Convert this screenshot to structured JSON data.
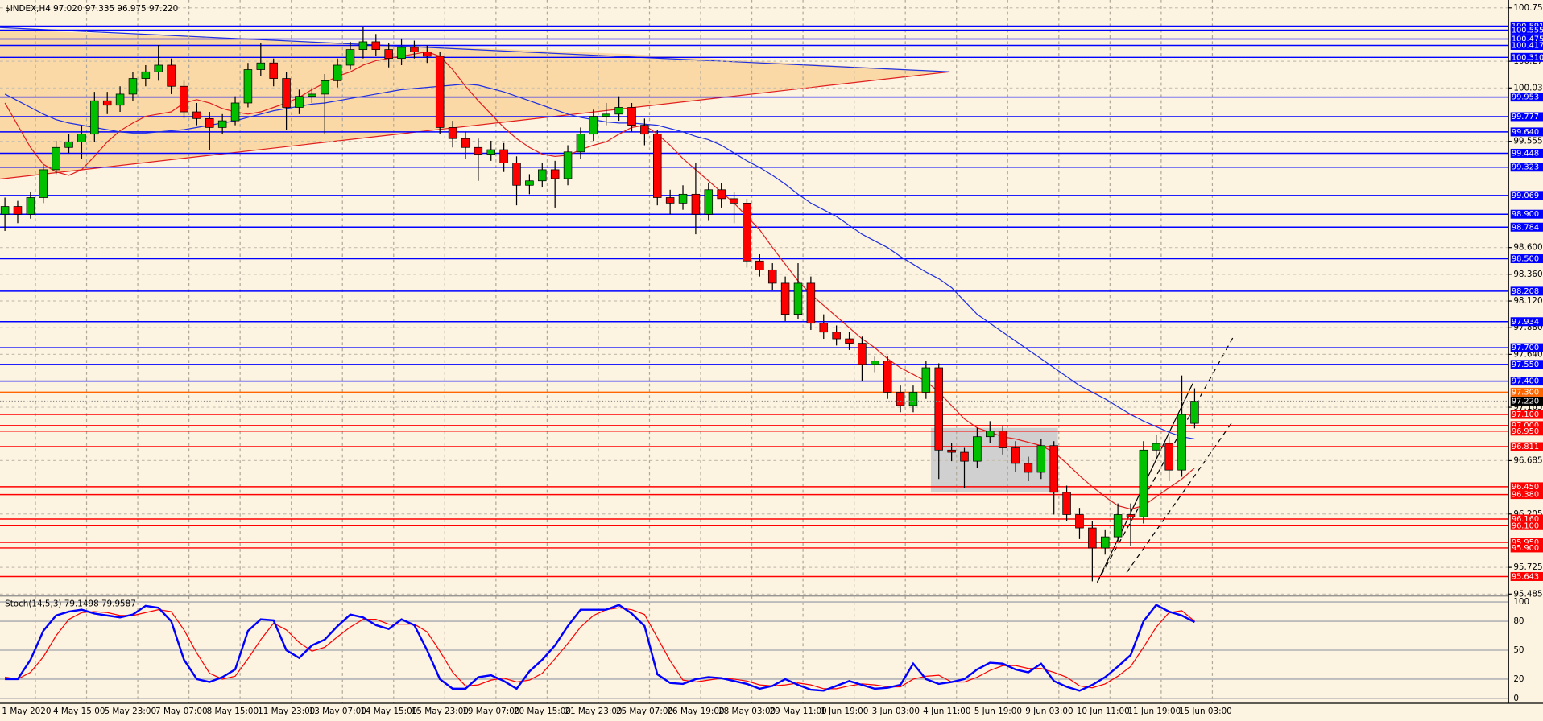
{
  "chart_data": {
    "type": "candlestick",
    "title": "$INDEX,H4  97.020 97.335 96.975 97.220",
    "ylim": [
      95.485,
      100.755
    ],
    "yticks": [
      100.755,
      100.275,
      100.035,
      99.555,
      {
        "value": 98.6,
        "label": "98.600"
      },
      {
        "value": 98.36,
        "label": "98.360"
      },
      {
        "value": 98.12,
        "label": "98.120"
      },
      {
        "value": 97.88,
        "label": "97.880"
      },
      {
        "value": 97.64,
        "label": "97.640"
      },
      97.165,
      96.685,
      96.205,
      95.725,
      95.485
    ],
    "grid": true,
    "up_color": "#00c000",
    "down_color": "#ff0000",
    "time_labels": [
      "1 May 2020",
      "4 May 15:00",
      "5 May 23:00",
      "7 May 07:00",
      "8 May 15:00",
      "11 May 23:00",
      "13 May 07:00",
      "14 May 15:00",
      "15 May 23:00",
      "19 May 07:00",
      "20 May 15:00",
      "21 May 23:00",
      "25 May 07:00",
      "26 May 19:00",
      "28 May 03:00",
      "29 May 11:00",
      "1 Jun 19:00",
      "3 Jun 03:00",
      "4 Jun 11:00",
      "5 Jun 19:00",
      "9 Jun 03:00",
      "10 Jun 11:00",
      "11 Jun 19:00",
      "15 Jun 03:00"
    ],
    "candles": [
      [
        98.9,
        99.05,
        98.75,
        98.97
      ],
      [
        98.97,
        99.02,
        98.82,
        98.9
      ],
      [
        98.9,
        99.1,
        98.86,
        99.05
      ],
      [
        99.05,
        99.34,
        99.0,
        99.3
      ],
      [
        99.3,
        99.56,
        99.26,
        99.5
      ],
      [
        99.5,
        99.62,
        99.45,
        99.55
      ],
      [
        99.55,
        99.7,
        99.4,
        99.62
      ],
      [
        99.62,
        100.0,
        99.55,
        99.92
      ],
      [
        99.92,
        100.0,
        99.8,
        99.88
      ],
      [
        99.88,
        100.05,
        99.82,
        99.98
      ],
      [
        99.98,
        100.18,
        99.92,
        100.12
      ],
      [
        100.12,
        100.24,
        100.05,
        100.18
      ],
      [
        100.18,
        100.42,
        100.1,
        100.24
      ],
      [
        100.24,
        100.3,
        99.98,
        100.05
      ],
      [
        100.05,
        100.1,
        99.76,
        99.82
      ],
      [
        99.82,
        99.9,
        99.7,
        99.76
      ],
      [
        99.76,
        99.82,
        99.48,
        99.68
      ],
      [
        99.68,
        99.8,
        99.62,
        99.74
      ],
      [
        99.74,
        99.96,
        99.7,
        99.9
      ],
      [
        99.9,
        100.26,
        99.86,
        100.2
      ],
      [
        100.2,
        100.44,
        100.14,
        100.26
      ],
      [
        100.26,
        100.3,
        100.05,
        100.12
      ],
      [
        100.12,
        100.18,
        99.66,
        99.86
      ],
      [
        99.86,
        100.02,
        99.8,
        99.96
      ],
      [
        99.96,
        100.04,
        99.9,
        99.98
      ],
      [
        99.98,
        100.16,
        99.62,
        100.1
      ],
      [
        100.1,
        100.3,
        100.04,
        100.24
      ],
      [
        100.24,
        100.45,
        100.2,
        100.38
      ],
      [
        100.38,
        100.58,
        100.3,
        100.45
      ],
      [
        100.45,
        100.52,
        100.32,
        100.38
      ],
      [
        100.38,
        100.44,
        100.22,
        100.3
      ],
      [
        100.3,
        100.48,
        100.24,
        100.4
      ],
      [
        100.4,
        100.46,
        100.3,
        100.36
      ],
      [
        100.36,
        100.42,
        100.26,
        100.32
      ],
      [
        100.32,
        100.36,
        99.62,
        99.68
      ],
      [
        99.68,
        99.74,
        99.5,
        99.58
      ],
      [
        99.58,
        99.64,
        99.4,
        99.5
      ],
      [
        99.5,
        99.58,
        99.2,
        99.44
      ],
      [
        99.44,
        99.56,
        99.38,
        99.48
      ],
      [
        99.48,
        99.54,
        99.28,
        99.36
      ],
      [
        99.36,
        99.42,
        98.98,
        99.16
      ],
      [
        99.16,
        99.26,
        99.08,
        99.2
      ],
      [
        99.2,
        99.36,
        99.14,
        99.3
      ],
      [
        99.3,
        99.38,
        98.96,
        99.22
      ],
      [
        99.22,
        99.52,
        99.16,
        99.46
      ],
      [
        99.46,
        99.68,
        99.4,
        99.62
      ],
      [
        99.62,
        99.84,
        99.56,
        99.78
      ],
      [
        99.78,
        99.9,
        99.7,
        99.8
      ],
      [
        99.8,
        99.96,
        99.74,
        99.86
      ],
      [
        99.86,
        99.9,
        99.64,
        99.7
      ],
      [
        99.7,
        99.76,
        99.52,
        99.62
      ],
      [
        99.62,
        99.66,
        98.98,
        99.05
      ],
      [
        99.05,
        99.12,
        98.9,
        99.0
      ],
      [
        99.0,
        99.16,
        98.94,
        99.08
      ],
      [
        99.08,
        99.36,
        98.72,
        98.9
      ],
      [
        98.9,
        99.18,
        98.84,
        99.12
      ],
      [
        99.12,
        99.18,
        98.96,
        99.04
      ],
      [
        99.04,
        99.1,
        98.82,
        99.0
      ],
      [
        99.0,
        99.04,
        98.42,
        98.48
      ],
      [
        98.48,
        98.54,
        98.34,
        98.4
      ],
      [
        98.4,
        98.46,
        98.22,
        98.28
      ],
      [
        98.28,
        98.34,
        97.94,
        98.0
      ],
      [
        98.0,
        98.46,
        97.96,
        98.28
      ],
      [
        98.28,
        98.34,
        97.86,
        97.92
      ],
      [
        97.92,
        98.0,
        97.78,
        97.84
      ],
      [
        97.84,
        97.9,
        97.72,
        97.78
      ],
      [
        97.78,
        97.84,
        97.68,
        97.74
      ],
      [
        97.74,
        97.8,
        97.4,
        97.55
      ],
      [
        97.55,
        97.62,
        97.48,
        97.58
      ],
      [
        97.58,
        97.62,
        97.24,
        97.3
      ],
      [
        97.3,
        97.36,
        97.12,
        97.18
      ],
      [
        97.18,
        97.36,
        97.12,
        97.3
      ],
      [
        97.3,
        97.58,
        97.24,
        97.52
      ],
      [
        97.52,
        97.56,
        96.52,
        96.78
      ],
      [
        96.78,
        96.84,
        96.68,
        96.76
      ],
      [
        96.76,
        96.8,
        96.44,
        96.68
      ],
      [
        96.68,
        96.98,
        96.62,
        96.9
      ],
      [
        96.9,
        97.04,
        96.84,
        96.95
      ],
      [
        96.95,
        97.0,
        96.74,
        96.8
      ],
      [
        96.8,
        96.86,
        96.58,
        96.66
      ],
      [
        96.66,
        96.72,
        96.5,
        96.58
      ],
      [
        96.58,
        96.88,
        96.52,
        96.82
      ],
      [
        96.82,
        96.86,
        96.2,
        96.4
      ],
      [
        96.4,
        96.46,
        96.14,
        96.2
      ],
      [
        96.2,
        96.26,
        95.98,
        96.08
      ],
      [
        96.08,
        96.14,
        95.6,
        95.9
      ],
      [
        95.9,
        96.06,
        95.84,
        96.0
      ],
      [
        96.0,
        96.3,
        95.96,
        96.2
      ],
      [
        96.2,
        96.3,
        95.92,
        96.18
      ],
      [
        96.18,
        96.86,
        96.12,
        96.78
      ],
      [
        96.78,
        96.92,
        96.7,
        96.84
      ],
      [
        96.84,
        96.9,
        96.5,
        96.6
      ],
      [
        96.6,
        97.45,
        96.54,
        97.1
      ],
      [
        97.02,
        97.335,
        96.975,
        97.22
      ]
    ],
    "ma_fast": {
      "color": "#e02020",
      "values": [
        99.9,
        99.7,
        99.5,
        99.35,
        99.28,
        99.25,
        99.3,
        99.42,
        99.55,
        99.65,
        99.72,
        99.78,
        99.8,
        99.82,
        99.9,
        99.93,
        99.9,
        99.85,
        99.82,
        99.8,
        99.82,
        99.86,
        99.9,
        99.95,
        100.02,
        100.08,
        100.14,
        100.18,
        100.24,
        100.28,
        100.3,
        100.32,
        100.34,
        100.36,
        100.32,
        100.2,
        100.05,
        99.92,
        99.8,
        99.68,
        99.58,
        99.5,
        99.44,
        99.42,
        99.43,
        99.48,
        99.52,
        99.55,
        99.62,
        99.68,
        99.7,
        99.62,
        99.52,
        99.4,
        99.3,
        99.2,
        99.1,
        99.0,
        98.88,
        98.76,
        98.6,
        98.45,
        98.3,
        98.18,
        98.08,
        97.98,
        97.88,
        97.78,
        97.7,
        97.6,
        97.52,
        97.46,
        97.4,
        97.3,
        97.18,
        97.06,
        96.98,
        96.94,
        96.9,
        96.88,
        96.85,
        96.82,
        96.76,
        96.66,
        96.55,
        96.45,
        96.36,
        96.28,
        96.25,
        96.28,
        96.36,
        96.44,
        96.52,
        96.62
      ]
    },
    "ma_slow": {
      "color": "#2030e0",
      "values": [
        99.98,
        99.92,
        99.86,
        99.8,
        99.75,
        99.72,
        99.7,
        99.68,
        99.66,
        99.64,
        99.63,
        99.63,
        99.64,
        99.65,
        99.66,
        99.68,
        99.7,
        99.72,
        99.74,
        99.77,
        99.8,
        99.83,
        99.85,
        99.87,
        99.89,
        99.9,
        99.92,
        99.94,
        99.96,
        99.98,
        100.0,
        100.02,
        100.03,
        100.04,
        100.05,
        100.06,
        100.07,
        100.06,
        100.03,
        100.0,
        99.96,
        99.92,
        99.88,
        99.84,
        99.8,
        99.77,
        99.75,
        99.73,
        99.72,
        99.72,
        99.71,
        99.7,
        99.67,
        99.64,
        99.6,
        99.57,
        99.52,
        99.45,
        99.38,
        99.32,
        99.25,
        99.17,
        99.08,
        99.0,
        98.94,
        98.88,
        98.8,
        98.72,
        98.66,
        98.6,
        98.52,
        98.45,
        98.38,
        98.32,
        98.24,
        98.12,
        98.0,
        97.92,
        97.84,
        97.76,
        97.68,
        97.6,
        97.52,
        97.44,
        97.36,
        97.3,
        97.24,
        97.17,
        97.1,
        97.04,
        96.99,
        96.94,
        96.9,
        96.88
      ]
    },
    "levels": [
      {
        "value": 100.591,
        "label": "100.591",
        "color": "#0000ff"
      },
      {
        "value": 100.555,
        "label": "100.555",
        "color": "#0000ff"
      },
      {
        "value": 100.475,
        "label": "100.475",
        "color": "#0000ff"
      },
      {
        "value": 100.417,
        "label": "100.417",
        "color": "#0000ff"
      },
      {
        "value": 100.31,
        "label": "100.310",
        "color": "#0000ff"
      },
      {
        "value": 99.953,
        "label": "99.953",
        "color": "#0000ff"
      },
      {
        "value": 99.777,
        "label": "99.777",
        "color": "#0000ff"
      },
      {
        "value": 99.64,
        "label": "99.640",
        "color": "#0000ff"
      },
      {
        "value": 99.448,
        "label": "99.448",
        "color": "#0000ff"
      },
      {
        "value": 99.323,
        "label": "99.323",
        "color": "#0000ff"
      },
      {
        "value": 99.069,
        "label": "99.069",
        "color": "#0000ff"
      },
      {
        "value": 98.9,
        "label": "98.900",
        "color": "#0000ff"
      },
      {
        "value": 98.784,
        "label": "98.784",
        "color": "#0000ff"
      },
      {
        "value": 98.5,
        "label": "98.500",
        "color": "#0000ff"
      },
      {
        "value": 98.208,
        "label": "98.208",
        "color": "#0000ff"
      },
      {
        "value": 97.934,
        "label": "97.934",
        "color": "#0000ff"
      },
      {
        "value": 97.7,
        "label": "97.700",
        "color": "#0000ff"
      },
      {
        "value": 97.55,
        "label": "97.550",
        "color": "#0000ff"
      },
      {
        "value": 97.4,
        "label": "97.400",
        "color": "#0000ff"
      },
      {
        "value": 97.3,
        "label": "97.300",
        "color": "#ff6600"
      },
      {
        "value": 97.1,
        "label": "97.100",
        "color": "#ff0000"
      },
      {
        "value": 97.0,
        "label": "97.000",
        "color": "#ff0000"
      },
      {
        "value": 96.95,
        "label": "96.950",
        "color": "#ff0000"
      },
      {
        "value": 96.811,
        "label": "96.811",
        "color": "#ff0000"
      },
      {
        "value": 96.45,
        "label": "96.450",
        "color": "#ff0000"
      },
      {
        "value": 96.38,
        "label": "96.380",
        "color": "#ff0000"
      },
      {
        "value": 96.16,
        "label": "96.160",
        "color": "#ff0000"
      },
      {
        "value": 96.1,
        "label": "96.100",
        "color": "#ff0000"
      },
      {
        "value": 95.95,
        "label": "95.950",
        "color": "#ff0000"
      },
      {
        "value": 95.9,
        "label": "95.900",
        "color": "#ff0000"
      },
      {
        "value": 95.643,
        "label": "95.643",
        "color": "#ff0000"
      }
    ],
    "last": {
      "value": 97.22,
      "label": "97.220"
    },
    "stochastic": {
      "label": "Stoch(14,5,3) 79.1498 79.9587",
      "ylim": [
        0,
        100
      ],
      "yticks": [
        100,
        80,
        50,
        20,
        0
      ],
      "k": {
        "color": "#0000ff",
        "values": [
          20,
          20,
          40,
          70,
          86,
          90,
          92,
          88,
          86,
          84,
          87,
          96,
          94,
          80,
          40,
          20,
          17,
          22,
          30,
          70,
          82,
          81,
          50,
          42,
          55,
          61,
          75,
          87,
          84,
          76,
          72,
          82,
          76,
          50,
          20,
          10,
          10,
          22,
          24,
          18,
          10,
          28,
          40,
          55,
          75,
          92,
          92,
          92,
          97,
          88,
          75,
          25,
          16,
          15,
          20,
          22,
          21,
          18,
          15,
          10,
          13,
          20,
          14,
          9,
          8,
          13,
          18,
          14,
          10,
          11,
          14,
          36,
          20,
          15,
          17,
          20,
          30,
          37,
          36,
          30,
          27,
          36,
          18,
          12,
          8,
          14,
          22,
          33,
          45,
          80,
          97,
          90,
          86,
          79.1498
        ]
      },
      "d": {
        "color": "#ff0000",
        "values": [
          22,
          20,
          27,
          43,
          65,
          82,
          89,
          90,
          89,
          86,
          86,
          89,
          92,
          90,
          71,
          47,
          26,
          20,
          23,
          41,
          61,
          78,
          71,
          58,
          49,
          53,
          64,
          74,
          82,
          82,
          77,
          77,
          77,
          69,
          49,
          27,
          13,
          14,
          19,
          21,
          17,
          19,
          26,
          41,
          57,
          74,
          86,
          92,
          94,
          92,
          87,
          63,
          39,
          19,
          17,
          19,
          21,
          20,
          18,
          14,
          13,
          14,
          16,
          14,
          10,
          10,
          13,
          15,
          14,
          12,
          12,
          20,
          23,
          24,
          17,
          17,
          22,
          29,
          34,
          34,
          31,
          31,
          27,
          22,
          13,
          11,
          15,
          23,
          33,
          53,
          74,
          89,
          91,
          79.9587
        ]
      }
    }
  }
}
